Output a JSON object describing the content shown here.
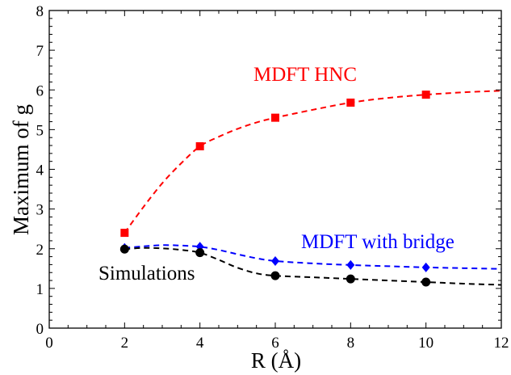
{
  "chart_data": {
    "type": "line",
    "xlabel": "R (Å)",
    "ylabel": "Maximum of g",
    "xlim": [
      0,
      12
    ],
    "ylim": [
      0,
      8
    ],
    "x_ticks": [
      0,
      2,
      4,
      6,
      8,
      10,
      12
    ],
    "y_ticks": [
      0,
      1,
      2,
      3,
      4,
      5,
      6,
      7,
      8
    ],
    "grid": false,
    "series": [
      {
        "name": "MDFT HNC",
        "color": "#ff0000",
        "marker": "square",
        "line_style": "dashed",
        "points": [
          [
            2,
            2.4
          ],
          [
            4,
            4.58
          ],
          [
            6,
            5.3
          ],
          [
            8,
            5.68
          ],
          [
            10,
            5.88
          ]
        ],
        "curve": [
          [
            2,
            2.4
          ],
          [
            2.5,
            3.05
          ],
          [
            3,
            3.65
          ],
          [
            3.5,
            4.15
          ],
          [
            4,
            4.58
          ],
          [
            4.5,
            4.82
          ],
          [
            5,
            5.02
          ],
          [
            5.5,
            5.18
          ],
          [
            6,
            5.3
          ],
          [
            7,
            5.5
          ],
          [
            8,
            5.68
          ],
          [
            9,
            5.8
          ],
          [
            10,
            5.88
          ],
          [
            11,
            5.94
          ],
          [
            12,
            5.98
          ]
        ]
      },
      {
        "name": "MDFT with bridge",
        "color": "#0000ff",
        "marker": "diamond",
        "line_style": "dashed",
        "points": [
          [
            2,
            2.02
          ],
          [
            4,
            2.05
          ],
          [
            6,
            1.69
          ],
          [
            8,
            1.59
          ],
          [
            10,
            1.53
          ]
        ],
        "curve": [
          [
            2,
            2.02
          ],
          [
            2.5,
            2.06
          ],
          [
            3,
            2.09
          ],
          [
            3.5,
            2.08
          ],
          [
            4,
            2.05
          ],
          [
            4.5,
            1.97
          ],
          [
            5,
            1.86
          ],
          [
            5.5,
            1.76
          ],
          [
            6,
            1.69
          ],
          [
            7,
            1.63
          ],
          [
            8,
            1.59
          ],
          [
            9,
            1.56
          ],
          [
            10,
            1.53
          ],
          [
            11,
            1.51
          ],
          [
            12,
            1.49
          ]
        ]
      },
      {
        "name": "Simulations",
        "color": "#000000",
        "marker": "circle",
        "line_style": "dashed",
        "points": [
          [
            2,
            1.99
          ],
          [
            4,
            1.9
          ],
          [
            6,
            1.32
          ],
          [
            8,
            1.24
          ],
          [
            10,
            1.16
          ]
        ],
        "curve": [
          [
            2,
            1.99
          ],
          [
            2.5,
            2.02
          ],
          [
            3,
            2.01
          ],
          [
            3.5,
            1.97
          ],
          [
            4,
            1.9
          ],
          [
            4.5,
            1.72
          ],
          [
            5,
            1.52
          ],
          [
            5.5,
            1.38
          ],
          [
            6,
            1.32
          ],
          [
            7,
            1.28
          ],
          [
            8,
            1.24
          ],
          [
            9,
            1.2
          ],
          [
            10,
            1.16
          ],
          [
            11,
            1.12
          ],
          [
            12,
            1.09
          ]
        ]
      }
    ]
  }
}
